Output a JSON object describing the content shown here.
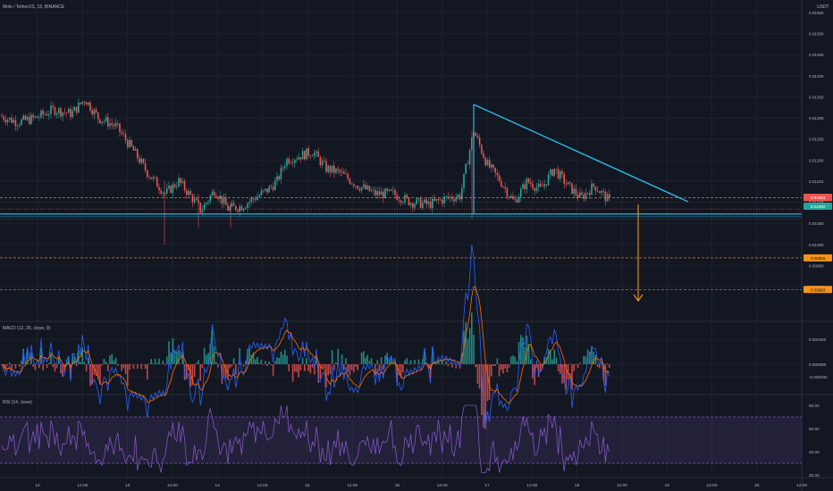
{
  "header": {
    "symbol_title": "Mole / TetherUS, 15, BINANCE",
    "currency": "USDT"
  },
  "colors": {
    "background": "#131722",
    "grid": "#1e222d",
    "up": "#26a69a",
    "down": "#ef5350",
    "trendline": "#2fb5e3",
    "orange": "#f7931a",
    "macd": "#2962ff",
    "signal": "#ff6d00",
    "rsi": "#7e57c2"
  },
  "chart_data": [
    {
      "type": "candlestick",
      "title": "Mole / TetherUS, 15, BINANCE",
      "y_unit": "USDT",
      "y_ticks": [
        "0.01550",
        "0.01500",
        "0.01450",
        "0.01400",
        "0.01350",
        "0.01300",
        "0.01250",
        "0.01200",
        "0.01150",
        "0.01100",
        "0.01050",
        "0.01000",
        "0.00950",
        "0.00900"
      ],
      "price_tags": [
        {
          "value": "0.01111",
          "color": "#f7931a"
        },
        {
          "value": "0.01084",
          "color": "#ef5350"
        },
        {
          "value": "0.01060",
          "color": "#26a69a"
        },
        {
          "value": "0.00968",
          "color": "#f7931a"
        },
        {
          "value": "0.00893",
          "color": "#f7931a"
        }
      ],
      "x_ticks": [
        "12",
        "12:00",
        "13",
        "12:00",
        "14",
        "12:00",
        "15",
        "12:00",
        "16",
        "12:00",
        "17",
        "12:00",
        "18",
        "12:00",
        "19",
        "12:00",
        "20",
        "12:00"
      ],
      "horizontal_levels": [
        0.01111,
        0.01084,
        0.0106,
        0.00968,
        0.00893
      ],
      "annotations": [
        "descending triangle trendline",
        "support line",
        "breakdown target arrow"
      ]
    },
    {
      "type": "line",
      "title": "MACD (12, 26, close, 9)",
      "y_ticks": [
        "0.000400",
        "0.000000",
        "-0.000200"
      ],
      "series": [
        {
          "name": "MACD"
        },
        {
          "name": "Signal"
        },
        {
          "name": "Histogram"
        }
      ]
    },
    {
      "type": "line",
      "title": "RSI (14, close)",
      "y_ticks": [
        "80.00",
        "60.00",
        "40.00",
        "20.00"
      ],
      "bands": [
        70,
        30
      ]
    }
  ]
}
